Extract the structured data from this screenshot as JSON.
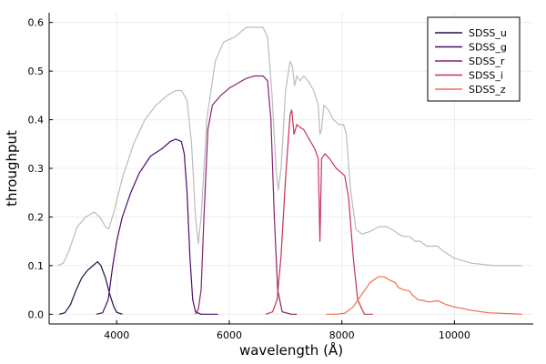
{
  "chart_data": {
    "type": "line",
    "title": "",
    "xlabel": "wavelength (Å)",
    "ylabel": "throughput",
    "xlim": [
      2800,
      11400
    ],
    "ylim": [
      -0.02,
      0.62
    ],
    "xticks": [
      4000,
      6000,
      8000,
      10000
    ],
    "yticks": [
      0.0,
      0.1,
      0.2,
      0.3,
      0.4,
      0.5,
      0.6
    ],
    "xtick_labels": [
      "4000",
      "6000",
      "8000",
      "10000"
    ],
    "ytick_labels": [
      "0.0",
      "0.1",
      "0.2",
      "0.3",
      "0.4",
      "0.5",
      "0.6"
    ],
    "grid": true,
    "legend_position": "top-right",
    "background_curve": {
      "color": "#bbbbbb",
      "points": [
        [
          2950,
          0.1
        ],
        [
          3050,
          0.105
        ],
        [
          3150,
          0.13
        ],
        [
          3300,
          0.18
        ],
        [
          3450,
          0.2
        ],
        [
          3600,
          0.21
        ],
        [
          3700,
          0.2
        ],
        [
          3800,
          0.18
        ],
        [
          3860,
          0.175
        ],
        [
          3950,
          0.21
        ],
        [
          4100,
          0.28
        ],
        [
          4300,
          0.35
        ],
        [
          4500,
          0.4
        ],
        [
          4700,
          0.43
        ],
        [
          4900,
          0.45
        ],
        [
          5050,
          0.46
        ],
        [
          5150,
          0.46
        ],
        [
          5250,
          0.44
        ],
        [
          5330,
          0.35
        ],
        [
          5400,
          0.2
        ],
        [
          5450,
          0.145
        ],
        [
          5500,
          0.2
        ],
        [
          5600,
          0.4
        ],
        [
          5750,
          0.52
        ],
        [
          5900,
          0.56
        ],
        [
          6100,
          0.57
        ],
        [
          6300,
          0.59
        ],
        [
          6500,
          0.59
        ],
        [
          6600,
          0.59
        ],
        [
          6680,
          0.57
        ],
        [
          6760,
          0.45
        ],
        [
          6830,
          0.3
        ],
        [
          6870,
          0.255
        ],
        [
          6920,
          0.3
        ],
        [
          7000,
          0.46
        ],
        [
          7080,
          0.52
        ],
        [
          7120,
          0.51
        ],
        [
          7160,
          0.47
        ],
        [
          7200,
          0.49
        ],
        [
          7260,
          0.48
        ],
        [
          7320,
          0.49
        ],
        [
          7400,
          0.48
        ],
        [
          7500,
          0.46
        ],
        [
          7580,
          0.43
        ],
        [
          7610,
          0.37
        ],
        [
          7640,
          0.38
        ],
        [
          7680,
          0.43
        ],
        [
          7760,
          0.42
        ],
        [
          7850,
          0.4
        ],
        [
          7950,
          0.39
        ],
        [
          8030,
          0.39
        ],
        [
          8080,
          0.37
        ],
        [
          8150,
          0.26
        ],
        [
          8250,
          0.175
        ],
        [
          8350,
          0.165
        ],
        [
          8500,
          0.17
        ],
        [
          8650,
          0.18
        ],
        [
          8800,
          0.18
        ],
        [
          8950,
          0.17
        ],
        [
          9000,
          0.165
        ],
        [
          9100,
          0.16
        ],
        [
          9200,
          0.16
        ],
        [
          9300,
          0.15
        ],
        [
          9400,
          0.15
        ],
        [
          9500,
          0.14
        ],
        [
          9700,
          0.14
        ],
        [
          9800,
          0.13
        ],
        [
          10000,
          0.115
        ],
        [
          10300,
          0.105
        ],
        [
          10700,
          0.1
        ],
        [
          11200,
          0.1
        ]
      ]
    },
    "series": [
      {
        "name": "SDSS_u",
        "color": "#1a1447",
        "points": [
          [
            2980,
            0.0
          ],
          [
            3080,
            0.003
          ],
          [
            3180,
            0.02
          ],
          [
            3280,
            0.05
          ],
          [
            3380,
            0.075
          ],
          [
            3480,
            0.09
          ],
          [
            3580,
            0.1
          ],
          [
            3660,
            0.108
          ],
          [
            3720,
            0.1
          ],
          [
            3800,
            0.075
          ],
          [
            3880,
            0.04
          ],
          [
            3950,
            0.015
          ],
          [
            4000,
            0.004
          ],
          [
            4100,
            0.0
          ]
        ]
      },
      {
        "name": "SDSS_g",
        "color": "#4b0c6b",
        "points": [
          [
            3640,
            0.0
          ],
          [
            3750,
            0.003
          ],
          [
            3850,
            0.03
          ],
          [
            3930,
            0.1
          ],
          [
            4000,
            0.15
          ],
          [
            4100,
            0.2
          ],
          [
            4250,
            0.25
          ],
          [
            4400,
            0.29
          ],
          [
            4600,
            0.325
          ],
          [
            4800,
            0.34
          ],
          [
            4950,
            0.355
          ],
          [
            5050,
            0.36
          ],
          [
            5150,
            0.355
          ],
          [
            5200,
            0.33
          ],
          [
            5250,
            0.25
          ],
          [
            5300,
            0.12
          ],
          [
            5350,
            0.03
          ],
          [
            5400,
            0.005
          ],
          [
            5500,
            0.0
          ],
          [
            5800,
            0.0
          ]
        ]
      },
      {
        "name": "SDSS_r",
        "color": "#8a226a",
        "points": [
          [
            5400,
            0.0
          ],
          [
            5450,
            0.01
          ],
          [
            5500,
            0.05
          ],
          [
            5550,
            0.2
          ],
          [
            5620,
            0.38
          ],
          [
            5700,
            0.43
          ],
          [
            5850,
            0.45
          ],
          [
            6000,
            0.465
          ],
          [
            6150,
            0.475
          ],
          [
            6300,
            0.485
          ],
          [
            6450,
            0.49
          ],
          [
            6600,
            0.49
          ],
          [
            6680,
            0.48
          ],
          [
            6740,
            0.4
          ],
          [
            6800,
            0.2
          ],
          [
            6860,
            0.05
          ],
          [
            6940,
            0.005
          ],
          [
            7100,
            0.0
          ],
          [
            7200,
            0.0
          ]
        ]
      },
      {
        "name": "SDSS_i",
        "color": "#c8325a",
        "points": [
          [
            6650,
            0.0
          ],
          [
            6770,
            0.005
          ],
          [
            6850,
            0.03
          ],
          [
            6920,
            0.12
          ],
          [
            7000,
            0.28
          ],
          [
            7080,
            0.41
          ],
          [
            7110,
            0.42
          ],
          [
            7150,
            0.37
          ],
          [
            7200,
            0.39
          ],
          [
            7250,
            0.385
          ],
          [
            7320,
            0.38
          ],
          [
            7420,
            0.36
          ],
          [
            7520,
            0.34
          ],
          [
            7580,
            0.32
          ],
          [
            7610,
            0.15
          ],
          [
            7640,
            0.32
          ],
          [
            7700,
            0.33
          ],
          [
            7780,
            0.32
          ],
          [
            7900,
            0.3
          ],
          [
            8000,
            0.29
          ],
          [
            8050,
            0.285
          ],
          [
            8120,
            0.24
          ],
          [
            8200,
            0.12
          ],
          [
            8280,
            0.03
          ],
          [
            8400,
            0.0
          ],
          [
            8550,
            0.0
          ]
        ]
      },
      {
        "name": "SDSS_z",
        "color": "#f36d4a",
        "points": [
          [
            7720,
            0.0
          ],
          [
            7900,
            0.0
          ],
          [
            8050,
            0.002
          ],
          [
            8200,
            0.015
          ],
          [
            8350,
            0.04
          ],
          [
            8500,
            0.065
          ],
          [
            8650,
            0.077
          ],
          [
            8750,
            0.077
          ],
          [
            8850,
            0.07
          ],
          [
            8950,
            0.065
          ],
          [
            9000,
            0.055
          ],
          [
            9100,
            0.05
          ],
          [
            9200,
            0.048
          ],
          [
            9250,
            0.04
          ],
          [
            9350,
            0.03
          ],
          [
            9450,
            0.028
          ],
          [
            9550,
            0.025
          ],
          [
            9700,
            0.028
          ],
          [
            9850,
            0.02
          ],
          [
            10000,
            0.015
          ],
          [
            10300,
            0.008
          ],
          [
            10600,
            0.003
          ],
          [
            11000,
            0.001
          ],
          [
            11200,
            0.0
          ]
        ]
      }
    ]
  }
}
